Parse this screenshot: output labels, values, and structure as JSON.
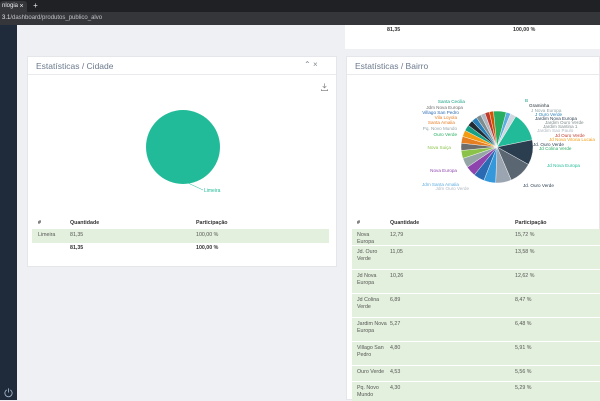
{
  "browser": {
    "tab_title": "nlogia",
    "tab_close": "×",
    "new_tab": "+",
    "url_prefix": "3.1",
    "url_rest": "/dashboard/produtos_publico_alvo"
  },
  "top_strip": {
    "value": "81,35",
    "percent": "100,00 %"
  },
  "cidade": {
    "title": "Estatísticas / Cidade",
    "minimize": "⌃",
    "close": "×",
    "chart_data": {
      "type": "pie",
      "slices": [
        {
          "label": "Limeira",
          "value": 81.35,
          "color": "#22bb99"
        }
      ]
    },
    "table": {
      "headers": [
        "#",
        "Quantidade",
        "Participação"
      ],
      "rows": [
        {
          "name": "Limeira",
          "qty": "81,35",
          "pct": "100,00 %"
        }
      ],
      "total": {
        "name": "",
        "qty": "81,35",
        "pct": "100,00 %"
      }
    }
  },
  "bairro": {
    "title": "Estatísticas / Bairro",
    "chart_data": {
      "type": "pie",
      "slices": [
        {
          "label": "Nova Europa",
          "value": 12.79,
          "color": "#22bb99"
        },
        {
          "label": "Jd. Ouro Verde",
          "value": 11.05,
          "color": "#2b3e50"
        },
        {
          "label": "Jd Nova Europa",
          "value": 10.26,
          "color": "#5a6773"
        },
        {
          "label": "Jd Colina Verde",
          "value": 6.89,
          "color": "#9aa5b1"
        },
        {
          "label": "Jardim Nova Europa",
          "value": 5.27,
          "color": "#3498db"
        },
        {
          "label": "Villago San Pedro",
          "value": 4.8,
          "color": "#2a6ab3"
        },
        {
          "label": "Ouro Verde",
          "value": 4.53,
          "color": "#8e44ad"
        },
        {
          "label": "Pq. Novo Mundo",
          "value": 4.3,
          "color": "#95a5a6"
        },
        {
          "label": "Nova Suiça",
          "value": 3.5,
          "color": "#8bc34a"
        },
        {
          "label": "Jdm Nova Europa",
          "value": 3.2,
          "color": "#6d6d6d"
        },
        {
          "label": "Santa Amalia",
          "value": 3.0,
          "color": "#e67e22"
        },
        {
          "label": "Vila Loyola",
          "value": 2.8,
          "color": "#f39c12"
        },
        {
          "label": "Santa Cecilia",
          "value": 2.6,
          "color": "#16a085"
        },
        {
          "label": "Graminha",
          "value": 2.5,
          "color": "#222c35"
        },
        {
          "label": "J Ouro Verde",
          "value": 2.4,
          "color": "#2980b9"
        },
        {
          "label": "Jardim Ouro Verde",
          "value": 2.2,
          "color": "#7f8c8d"
        },
        {
          "label": "Jardim Santina 1",
          "value": 2.0,
          "color": "#b0b9c2"
        },
        {
          "label": "Jd Ouro Verde",
          "value": 2.0,
          "color": "#c0392b"
        },
        {
          "label": "Jd Ouro Verde",
          "value": 1.8,
          "color": "#d35400"
        },
        {
          "label": "Jd Colina Verde",
          "value": 5.6,
          "color": "#27ae60"
        },
        {
          "label": "Jdm Santa Amalia",
          "value": 2.0,
          "color": "#5dade2"
        },
        {
          "label": "Jdm Ouro Verde",
          "value": 2.5,
          "color": "#d0d7de"
        }
      ],
      "outer_labels": [
        {
          "text": "Santa Cecilia",
          "color": "#16a085"
        },
        {
          "text": "Jdm Nova Europa",
          "color": "#6d6d6d"
        },
        {
          "text": "Villago San Pedro",
          "color": "#2a6ab3"
        },
        {
          "text": "Vila Loyola",
          "color": "#e67e22"
        },
        {
          "text": "Santa Amalia",
          "color": "#e67e22"
        },
        {
          "text": "Pq. Novo Mundo",
          "color": "#95a5a6"
        },
        {
          "text": "Ouro Verde",
          "color": "#27ae60"
        },
        {
          "text": "Nova Suiça",
          "color": "#8bc34a"
        },
        {
          "text": "Nova Europa",
          "color": "#8e44ad"
        },
        {
          "text": "Jdm Santa Amalia",
          "color": "#5dade2"
        },
        {
          "text": "Jdm Ouro Verde",
          "color": "#b0b9c2"
        },
        {
          "text": "Jd. Ouro Verde",
          "color": "#2b3e50"
        },
        {
          "text": "Jd Nova Europa",
          "color": "#22bb99"
        },
        {
          "text": "Jd Colina Verde",
          "color": "#27ae60"
        },
        {
          "text": "Jd. Ouro Verde",
          "color": "#2b3e50"
        },
        {
          "text": "Jd Nova Vitoria Lucaia",
          "color": "#f39c12"
        },
        {
          "text": "Jd Ouro Verde",
          "color": "#c0392b"
        },
        {
          "text": "Jardim Sao Paulo",
          "color": "#b0b9c2"
        },
        {
          "text": "Jardim Santina 1",
          "color": "#7f8c8d"
        },
        {
          "text": "Jardim Ouro Verde",
          "color": "#7f8c8d"
        },
        {
          "text": "Jardim Nova Europa",
          "color": "#2c3e50"
        },
        {
          "text": "J Ouro Verde",
          "color": "#2980b9"
        },
        {
          "text": "J Nova Europa",
          "color": "#95a5a6"
        },
        {
          "text": "Graminha",
          "color": "#222c35"
        },
        {
          "text": "B",
          "color": "#16a085"
        }
      ]
    },
    "table": {
      "headers": [
        "#",
        "Quantidade",
        "Participação"
      ],
      "rows": [
        {
          "name": "Nova Europa",
          "qty": "12,79",
          "pct": "15,72 %"
        },
        {
          "name": "Jd. Ouro Verde",
          "qty": "11,05",
          "pct": "13,58 %"
        },
        {
          "name": "Jd Nova Europa",
          "qty": "10,26",
          "pct": "12,62 %"
        },
        {
          "name": "Jd Colina Verde",
          "qty": "6,89",
          "pct": "8,47 %"
        },
        {
          "name": "Jardim Nova Europa",
          "qty": "5,27",
          "pct": "6,48 %"
        },
        {
          "name": "Villago San Pedro",
          "qty": "4,80",
          "pct": "5,91 %"
        },
        {
          "name": "Ouro Verde",
          "qty": "4,53",
          "pct": "5,56 %"
        },
        {
          "name": "Pq. Novo Mundo",
          "qty": "4,30",
          "pct": "5,29 %"
        },
        {
          "name": "Nova Suiça",
          "qty": "3,50",
          "pct": "4,31 %"
        }
      ]
    }
  },
  "colors": {
    "accent": "#22bb99",
    "row_highlight": "#e3f0dd",
    "sidebar": "#1f2b3a"
  }
}
